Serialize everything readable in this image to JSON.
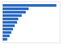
{
  "chart_data": {
    "type": "bar",
    "orientation": "horizontal",
    "categories": [
      null,
      null,
      null,
      null,
      null,
      null,
      null,
      null,
      null,
      null,
      null
    ],
    "values": [
      94,
      46,
      41,
      34,
      28,
      26,
      22,
      19,
      16,
      13,
      9
    ],
    "color": "#2f6ec4",
    "xlim": [
      0,
      100
    ],
    "grid": false,
    "tick_labels": false
  }
}
